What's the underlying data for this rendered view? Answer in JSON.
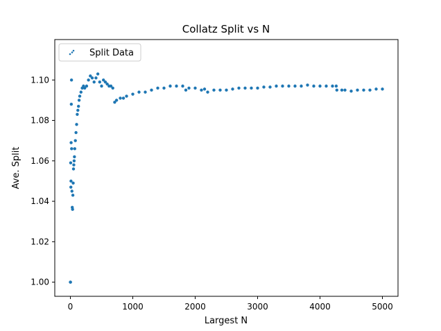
{
  "chart_data": {
    "type": "scatter",
    "title": "Collatz Split vs N",
    "xlabel": "Largest N",
    "ylabel": "Ave. Split",
    "xlim": [
      -250,
      5250
    ],
    "ylim": [
      0.993,
      1.12
    ],
    "xticks": [
      0,
      1000,
      2000,
      3000,
      4000,
      5000
    ],
    "xtick_labels": [
      "0",
      "1000",
      "2000",
      "3000",
      "4000",
      "5000"
    ],
    "yticks": [
      1.0,
      1.02,
      1.04,
      1.06,
      1.08,
      1.1
    ],
    "ytick_labels": [
      "1.00",
      "1.02",
      "1.04",
      "1.06",
      "1.08",
      "1.10"
    ],
    "grid": false,
    "legend": {
      "position": "top-left",
      "entries": [
        "Split Data"
      ]
    },
    "colors": {
      "series": "#1f77b4"
    },
    "series": [
      {
        "name": "Split Data",
        "keypoints": [
          [
            0,
            1.0
          ],
          [
            2,
            1.0
          ],
          [
            5,
            1.059
          ],
          [
            8,
            1.047
          ],
          [
            10,
            1.05
          ],
          [
            12,
            1.069
          ],
          [
            15,
            1.088
          ],
          [
            18,
            1.1
          ],
          [
            20,
            1.066
          ],
          [
            25,
            1.045
          ],
          [
            30,
            1.037
          ],
          [
            35,
            1.036
          ],
          [
            40,
            1.043
          ],
          [
            45,
            1.049
          ],
          [
            50,
            1.056
          ],
          [
            55,
            1.058
          ],
          [
            60,
            1.06
          ],
          [
            65,
            1.062
          ],
          [
            70,
            1.066
          ],
          [
            80,
            1.07
          ],
          [
            90,
            1.074
          ],
          [
            100,
            1.078
          ],
          [
            110,
            1.083
          ],
          [
            120,
            1.085
          ],
          [
            130,
            1.087
          ],
          [
            140,
            1.09
          ],
          [
            150,
            1.092
          ],
          [
            170,
            1.094
          ],
          [
            190,
            1.096
          ],
          [
            210,
            1.097
          ],
          [
            230,
            1.096
          ],
          [
            260,
            1.097
          ],
          [
            290,
            1.1
          ],
          [
            320,
            1.102
          ],
          [
            350,
            1.101
          ],
          [
            380,
            1.099
          ],
          [
            410,
            1.101
          ],
          [
            440,
            1.103
          ],
          [
            470,
            1.099
          ],
          [
            500,
            1.097
          ],
          [
            530,
            1.1
          ],
          [
            560,
            1.099
          ],
          [
            590,
            1.098
          ],
          [
            620,
            1.097
          ],
          [
            650,
            1.097
          ],
          [
            680,
            1.096
          ],
          [
            710,
            1.089
          ],
          [
            740,
            1.09
          ],
          [
            800,
            1.091
          ],
          [
            850,
            1.091
          ],
          [
            900,
            1.092
          ],
          [
            1000,
            1.093
          ],
          [
            1100,
            1.094
          ],
          [
            1200,
            1.094
          ],
          [
            1300,
            1.095
          ],
          [
            1400,
            1.096
          ],
          [
            1500,
            1.096
          ],
          [
            1600,
            1.097
          ],
          [
            1700,
            1.097
          ],
          [
            1800,
            1.097
          ],
          [
            1850,
            1.095
          ],
          [
            1900,
            1.096
          ],
          [
            2000,
            1.096
          ],
          [
            2100,
            1.095
          ],
          [
            2150,
            1.0955
          ],
          [
            2200,
            1.094
          ],
          [
            2300,
            1.095
          ],
          [
            2400,
            1.095
          ],
          [
            2500,
            1.095
          ],
          [
            2600,
            1.0955
          ],
          [
            2700,
            1.096
          ],
          [
            2800,
            1.096
          ],
          [
            2900,
            1.096
          ],
          [
            3000,
            1.096
          ],
          [
            3100,
            1.0965
          ],
          [
            3200,
            1.0965
          ],
          [
            3300,
            1.097
          ],
          [
            3400,
            1.097
          ],
          [
            3500,
            1.097
          ],
          [
            3600,
            1.097
          ],
          [
            3700,
            1.097
          ],
          [
            3800,
            1.0975
          ],
          [
            3900,
            1.097
          ],
          [
            4000,
            1.097
          ],
          [
            4100,
            1.097
          ],
          [
            4200,
            1.097
          ],
          [
            4260,
            1.097
          ],
          [
            4270,
            1.095
          ],
          [
            4350,
            1.095
          ],
          [
            4400,
            1.095
          ],
          [
            4500,
            1.0945
          ],
          [
            4600,
            1.095
          ],
          [
            4700,
            1.095
          ],
          [
            4800,
            1.095
          ],
          [
            4900,
            1.0955
          ],
          [
            5000,
            1.0955
          ]
        ]
      }
    ]
  }
}
